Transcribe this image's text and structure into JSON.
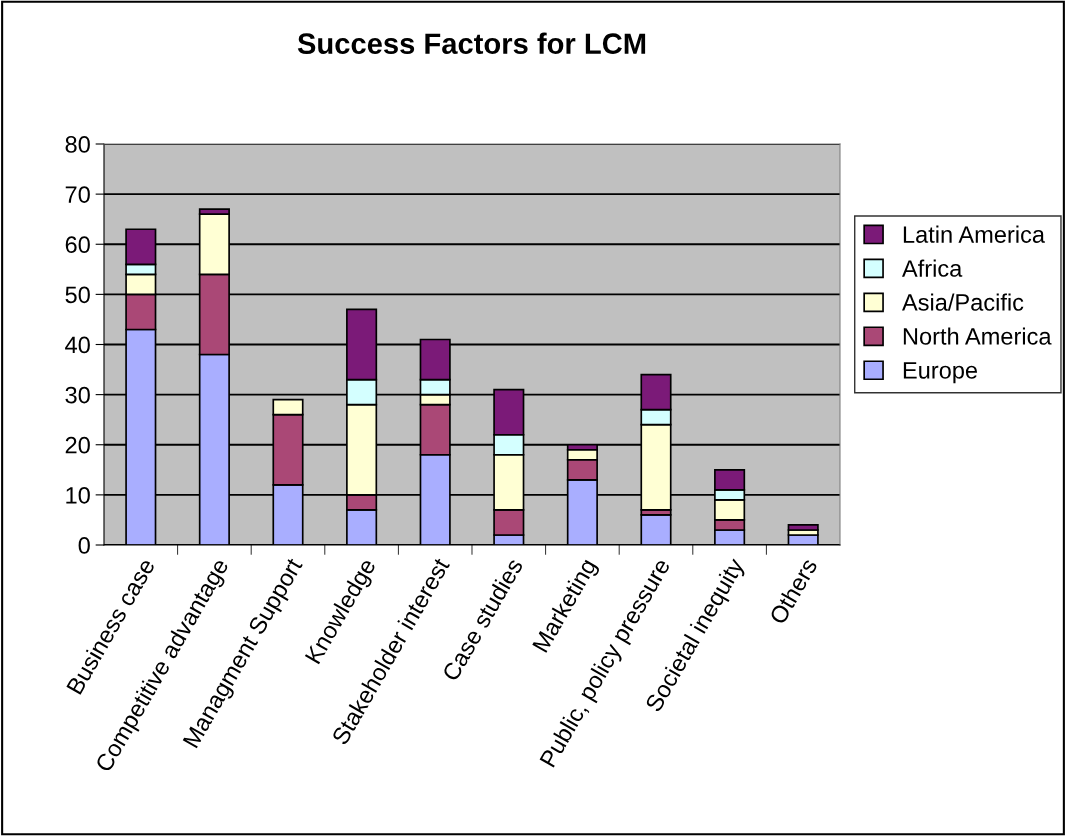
{
  "chart_data": {
    "type": "bar",
    "title": "Success Factors for LCM",
    "stacked": true,
    "categories": [
      "Business case",
      "Competitive advantage",
      "Managment Support",
      "Knowledge",
      "Stakeholder interest",
      "Case studies",
      "Marketing",
      "Public, policy pressure",
      "Societal inequity",
      "Others"
    ],
    "series": [
      {
        "name": "Europe",
        "color": "#a9aeff",
        "values": [
          43,
          38,
          12,
          7,
          18,
          2,
          13,
          6,
          3,
          2
        ]
      },
      {
        "name": "North America",
        "color": "#aa4876",
        "values": [
          7,
          16,
          14,
          3,
          10,
          5,
          4,
          1,
          2,
          0
        ]
      },
      {
        "name": "Asia/Pacific",
        "color": "#ffffd4",
        "values": [
          4,
          12,
          3,
          18,
          2,
          11,
          2,
          17,
          4,
          1
        ]
      },
      {
        "name": "Africa",
        "color": "#d4ffff",
        "values": [
          2,
          0,
          0,
          5,
          3,
          4,
          0,
          3,
          2,
          0
        ]
      },
      {
        "name": "Latin America",
        "color": "#7b1a78",
        "values": [
          7,
          1,
          0,
          14,
          8,
          9,
          1,
          7,
          4,
          1
        ]
      }
    ],
    "ylim": [
      0,
      80
    ],
    "yticks": [
      0,
      10,
      20,
      30,
      40,
      50,
      60,
      70,
      80
    ],
    "grid": "y",
    "legend": "right"
  }
}
